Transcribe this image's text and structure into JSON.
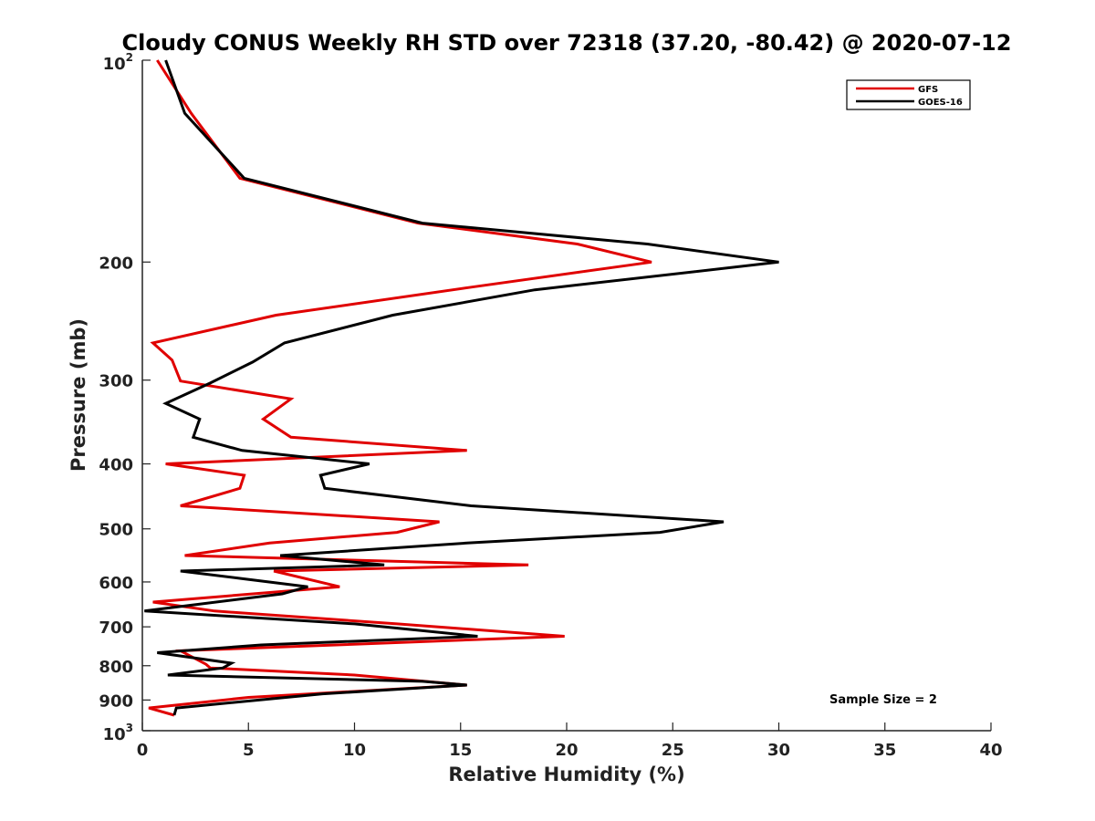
{
  "chart_data": {
    "type": "line",
    "title": "Cloudy CONUS Weekly RH STD over 72318 (37.20, -80.42) @ 2020-07-12",
    "xlabel": "Relative Humidity (%)",
    "ylabel": "Pressure (mb)",
    "xlim": [
      0,
      40
    ],
    "ylim": [
      100,
      1000
    ],
    "yscale": "log",
    "yreversed": true,
    "grid": false,
    "legend_position": "top-right",
    "x_ticks": [
      0,
      5,
      10,
      15,
      20,
      25,
      30,
      35,
      40
    ],
    "x_tick_labels": [
      "0",
      "5",
      "10",
      "15",
      "20",
      "25",
      "30",
      "35",
      "40"
    ],
    "y_ticks": [
      {
        "value": 200,
        "label": "200"
      },
      {
        "value": 300,
        "label": "300"
      },
      {
        "value": 400,
        "label": "400"
      },
      {
        "value": 500,
        "label": "500"
      },
      {
        "value": 600,
        "label": "600"
      },
      {
        "value": 700,
        "label": "700"
      },
      {
        "value": 800,
        "label": "800"
      },
      {
        "value": 900,
        "label": "900"
      }
    ],
    "y_top_label": {
      "base": "10",
      "exp": "2"
    },
    "y_bottom_label": {
      "base": "10",
      "exp": "3"
    },
    "annotation": "Sample Size = 2",
    "series": [
      {
        "name": "GFS",
        "color": "#e00000",
        "points": [
          [
            0.7,
            100
          ],
          [
            2.3,
            120
          ],
          [
            4.6,
            150
          ],
          [
            13,
            175
          ],
          [
            20.5,
            188
          ],
          [
            24,
            200
          ],
          [
            15.5,
            218
          ],
          [
            6.3,
            240
          ],
          [
            0.5,
            264
          ],
          [
            1.4,
            280
          ],
          [
            1.8,
            301
          ],
          [
            7,
            320
          ],
          [
            5.7,
            343
          ],
          [
            7,
            365
          ],
          [
            15.3,
            382
          ],
          [
            1.1,
            400
          ],
          [
            4.8,
            416
          ],
          [
            4.6,
            435
          ],
          [
            1.8,
            462
          ],
          [
            14,
            488
          ],
          [
            12,
            506
          ],
          [
            6,
            525
          ],
          [
            2,
            548
          ],
          [
            18.2,
            566
          ],
          [
            6.2,
            578
          ],
          [
            9.3,
            610
          ],
          [
            0.5,
            643
          ],
          [
            3.4,
            663
          ],
          [
            12,
            693
          ],
          [
            19.9,
            723
          ],
          [
            1.8,
            760
          ],
          [
            3,
            796
          ],
          [
            3.2,
            806
          ],
          [
            10,
            826
          ],
          [
            15.3,
            855
          ],
          [
            5,
            892
          ],
          [
            0.3,
            925
          ],
          [
            1.5,
            948
          ]
        ]
      },
      {
        "name": "GOES-16",
        "color": "#000000",
        "points": [
          [
            1.1,
            100
          ],
          [
            2,
            120
          ],
          [
            4.8,
            150
          ],
          [
            13.2,
            175
          ],
          [
            23.8,
            188
          ],
          [
            30,
            200
          ],
          [
            18.5,
            220
          ],
          [
            11.8,
            240
          ],
          [
            6.7,
            264
          ],
          [
            5.2,
            282
          ],
          [
            3.2,
            303
          ],
          [
            1.1,
            325
          ],
          [
            2.7,
            343
          ],
          [
            2.4,
            365
          ],
          [
            4.7,
            382
          ],
          [
            10.7,
            400
          ],
          [
            8.4,
            416
          ],
          [
            8.6,
            435
          ],
          [
            15.5,
            462
          ],
          [
            27.4,
            488
          ],
          [
            24.4,
            506
          ],
          [
            15.3,
            525
          ],
          [
            6.5,
            548
          ],
          [
            11.4,
            566
          ],
          [
            1.8,
            578
          ],
          [
            7.8,
            610
          ],
          [
            6.6,
            625
          ],
          [
            0.1,
            663
          ],
          [
            10,
            693
          ],
          [
            15.8,
            723
          ],
          [
            5.6,
            745
          ],
          [
            0.7,
            765
          ],
          [
            4.2,
            793
          ],
          [
            3.8,
            806
          ],
          [
            1.2,
            826
          ],
          [
            13.2,
            844
          ],
          [
            15.3,
            855
          ],
          [
            8.5,
            881
          ],
          [
            1.6,
            925
          ],
          [
            1.5,
            948
          ]
        ]
      }
    ]
  }
}
